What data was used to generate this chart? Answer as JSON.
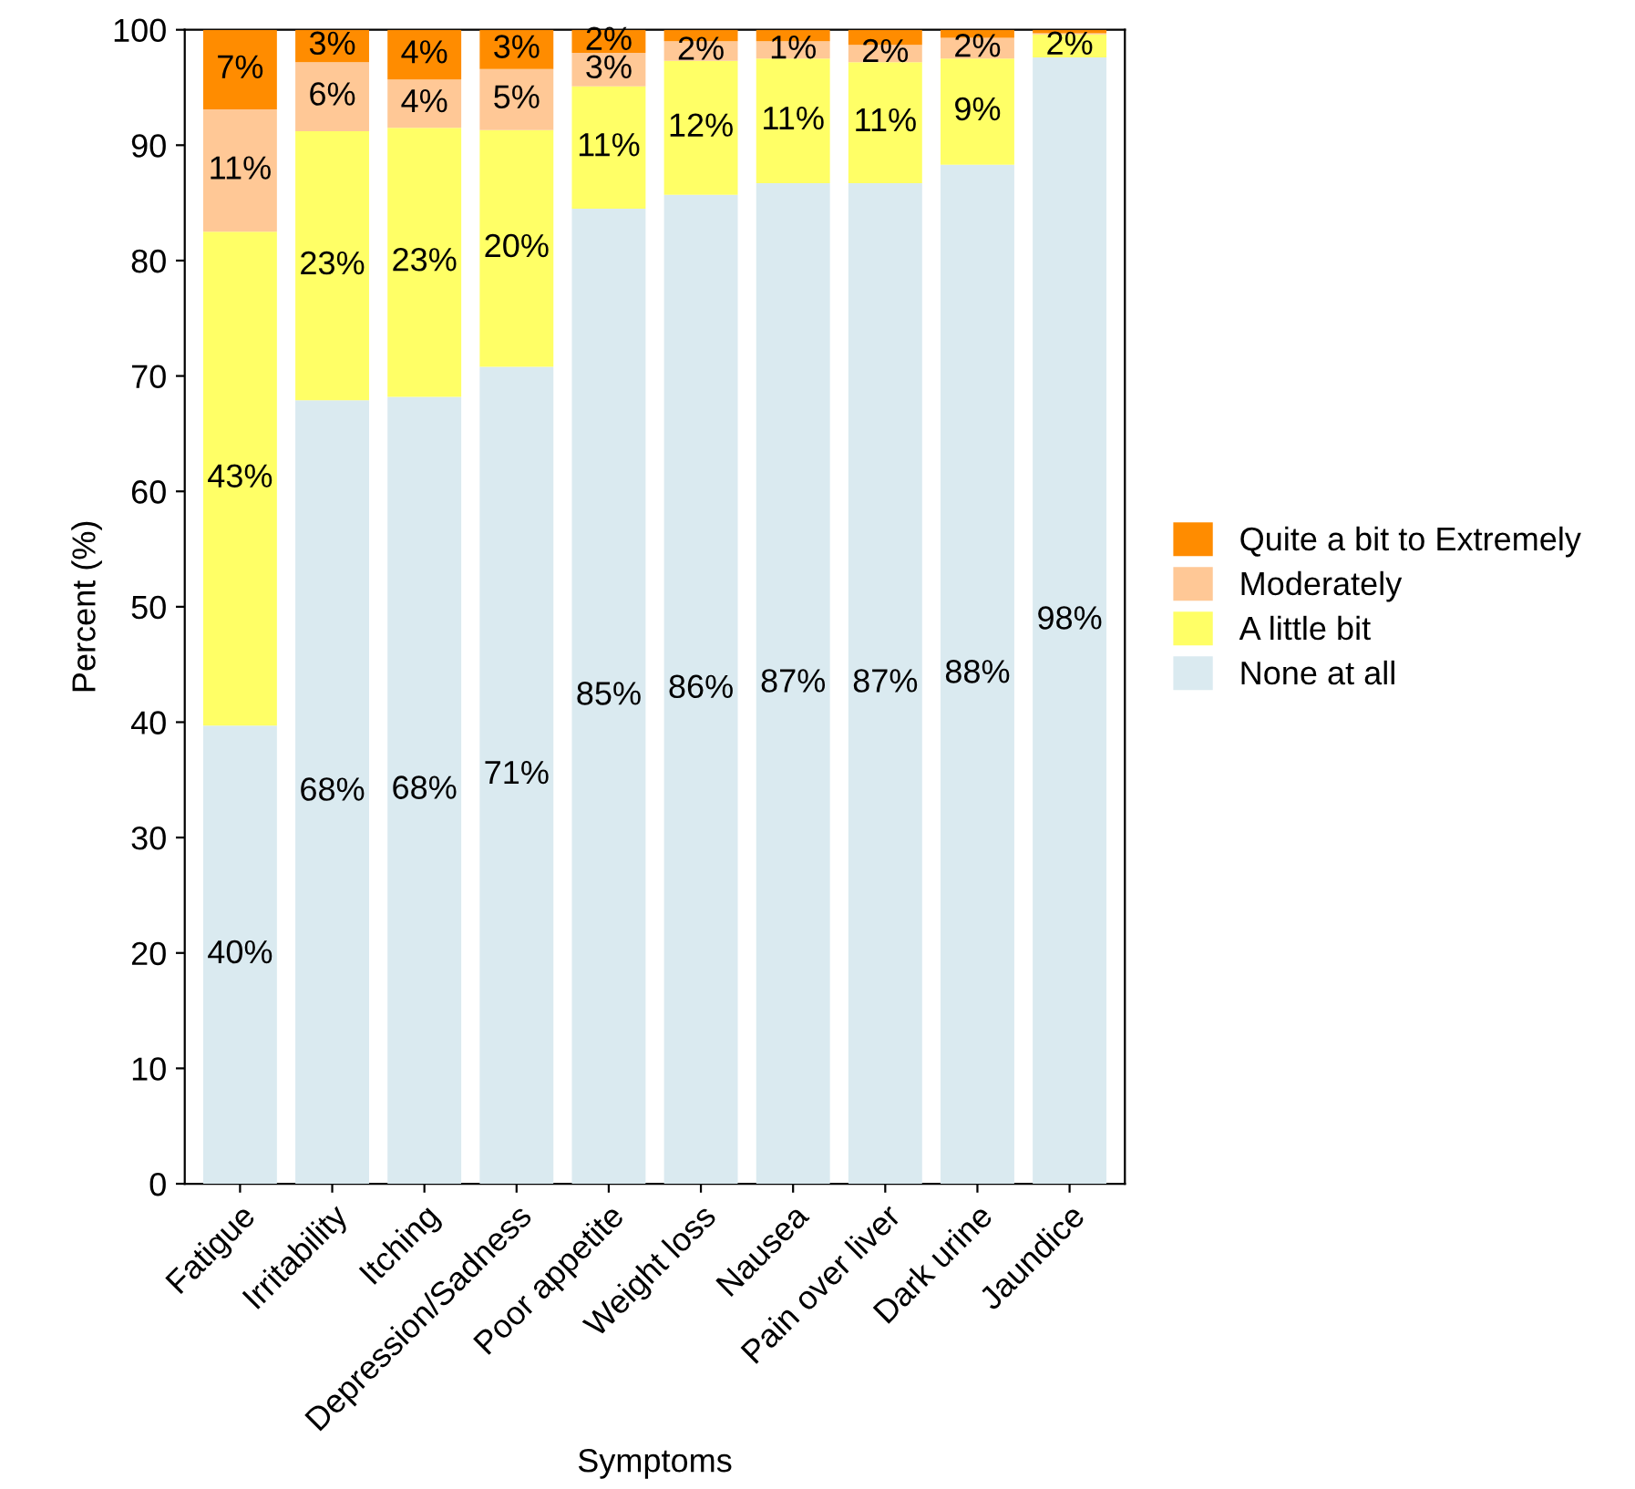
{
  "chart_data": {
    "type": "bar",
    "stacked": true,
    "xlabel": "Symptoms",
    "ylabel": "Percent (%)",
    "categories": [
      "Fatigue",
      "Irritability",
      "Itching",
      "Depression/Sadness",
      "Poor appetite",
      "Weight loss",
      "Nausea",
      "Pain over liver",
      "Dark urine",
      "Jaundice"
    ],
    "series": [
      {
        "name": "None at all",
        "color": "#daeaf0",
        "values": [
          39.7,
          67.9,
          68.2,
          70.8,
          84.5,
          85.7,
          86.7,
          86.7,
          88.3,
          97.6
        ],
        "value_labels": [
          "40%",
          "68%",
          "68%",
          "71%",
          "85%",
          "86%",
          "87%",
          "87%",
          "88%",
          "98%"
        ]
      },
      {
        "name": "A little bit",
        "color": "#ffff66",
        "values": [
          42.8,
          23.3,
          23.3,
          20.5,
          10.6,
          11.6,
          10.8,
          10.5,
          9.2,
          2.0
        ],
        "value_labels": [
          "43%",
          "23%",
          "23%",
          "20%",
          "11%",
          "12%",
          "11%",
          "11%",
          "9%",
          "2%"
        ]
      },
      {
        "name": "Moderately",
        "color": "#ffc896",
        "values": [
          10.6,
          6.0,
          4.2,
          5.3,
          2.9,
          1.7,
          1.5,
          1.5,
          1.8,
          0.1
        ],
        "value_labels": [
          "11%",
          "6%",
          "4%",
          "5%",
          "3%",
          "2%",
          "1%",
          "2%",
          "2%",
          null
        ]
      },
      {
        "name": "Quite a bit to Extremely",
        "color": "#ff8c00",
        "values": [
          6.9,
          2.8,
          4.3,
          3.4,
          2.0,
          1.0,
          1.0,
          1.3,
          0.7,
          0.3
        ],
        "value_labels": [
          "7%",
          "3%",
          "4%",
          "3%",
          "2%",
          null,
          null,
          null,
          null,
          null
        ]
      }
    ],
    "ylim": [
      0,
      100
    ],
    "yticks": [
      0,
      10,
      20,
      30,
      40,
      50,
      60,
      70,
      80,
      90,
      100
    ],
    "grid": false,
    "legend": "right"
  }
}
